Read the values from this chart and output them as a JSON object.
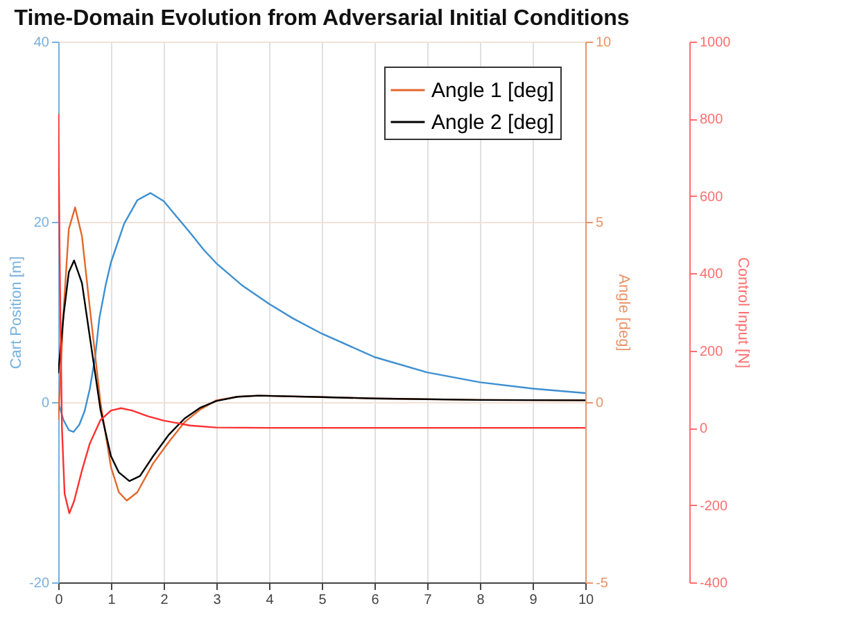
{
  "chart_data": {
    "type": "line",
    "title": "Time-Domain Evolution from Adversarial Initial Conditions",
    "ylabel": "Cart Position [m]",
    "y2label": "Angle [deg]",
    "y3label": "Control Input [N]",
    "xlim": [
      0,
      10
    ],
    "xticks": [
      0,
      1,
      2,
      3,
      4,
      5,
      6,
      7,
      8,
      9,
      10
    ],
    "ylim": [
      -20,
      40
    ],
    "yticks": [
      -20,
      0,
      20,
      40
    ],
    "y2lim": [
      -5,
      10
    ],
    "y2ticks": [
      -5,
      0,
      5,
      10
    ],
    "y3lim": [
      -400,
      1000
    ],
    "y3ticks": [
      -400,
      -200,
      0,
      200,
      400,
      600,
      800,
      1000
    ],
    "grid": true,
    "legend": "top right",
    "series": [
      {
        "axis": "y",
        "color": "#3d8fd1",
        "x": [
          0,
          0.1,
          0.2,
          0.29,
          0.4,
          0.5,
          0.6,
          0.7,
          0.78,
          0.9,
          1.0,
          1.25,
          1.5,
          1.75,
          2.0,
          2.5,
          2.76,
          3,
          3.5,
          4,
          4.45,
          5,
          6,
          7,
          8,
          9,
          10
        ],
        "values": [
          0,
          -2,
          -3.1,
          -3.3,
          -2.5,
          -1,
          1.5,
          5,
          9.3,
          13,
          15.5,
          19.8,
          22.4,
          23.2,
          22.3,
          18.8,
          16.9,
          15.4,
          12.9,
          10.9,
          9.3,
          7.6,
          5.0,
          3.3,
          2.2,
          1.5,
          1.0
        ]
      },
      {
        "axis": "y2",
        "name": "Angle 1 [deg]",
        "color": "#e2662a",
        "x": [
          0,
          0.1,
          0.2,
          0.32,
          0.45,
          0.6,
          0.8,
          1.0,
          1.15,
          1.3,
          1.5,
          1.8,
          2.1,
          2.4,
          2.7,
          3.0,
          3.4,
          3.8,
          5,
          6,
          8,
          10
        ],
        "values": [
          -0.5,
          2.5,
          4.8,
          5.4,
          4.6,
          2.6,
          0,
          -1.8,
          -2.5,
          -2.73,
          -2.5,
          -1.7,
          -1.1,
          -0.55,
          -0.2,
          0.05,
          0.15,
          0.18,
          0.14,
          0.1,
          0.06,
          0.05
        ]
      },
      {
        "axis": "y2",
        "name": "Angle 2 [deg]",
        "color": "#000000",
        "x": [
          0,
          0.1,
          0.2,
          0.3,
          0.45,
          0.6,
          0.8,
          1.0,
          1.15,
          1.35,
          1.55,
          1.8,
          2.1,
          2.4,
          2.7,
          3.0,
          3.4,
          3.8,
          5,
          6,
          8,
          10
        ],
        "values": [
          0.8,
          2.4,
          3.6,
          3.93,
          3.3,
          1.8,
          -0.2,
          -1.5,
          -1.95,
          -2.19,
          -2.05,
          -1.5,
          -0.9,
          -0.45,
          -0.15,
          0.03,
          0.15,
          0.18,
          0.14,
          0.1,
          0.06,
          0.05
        ]
      },
      {
        "axis": "y3",
        "color": "#ff3030",
        "x": [
          0,
          0.03,
          0.07,
          0.12,
          0.21,
          0.3,
          0.45,
          0.6,
          0.8,
          1.0,
          1.19,
          1.4,
          1.7,
          2.0,
          2.5,
          3.0,
          4,
          10
        ],
        "values": [
          813,
          400,
          0,
          -170,
          -221,
          -190,
          -110,
          -40,
          20,
          45,
          51,
          45,
          30,
          19,
          6,
          1,
          0,
          0
        ]
      }
    ]
  }
}
